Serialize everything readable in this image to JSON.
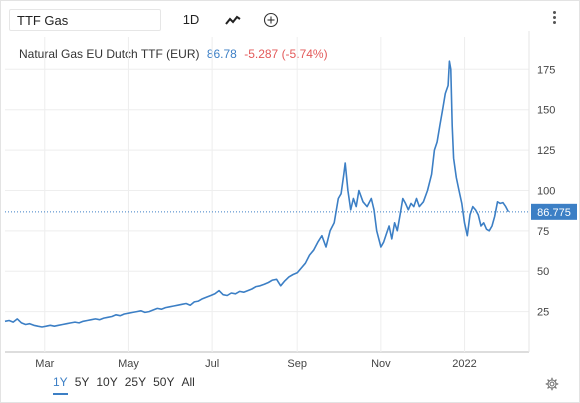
{
  "toolbar": {
    "symbol": "TTF Gas",
    "interval": "1D"
  },
  "legend": {
    "name": "Natural Gas EU Dutch TTF (EUR)",
    "price": "86.78",
    "change": "-5.287 (-5.74%)"
  },
  "last_label": "86.775",
  "ranges": [
    "1Y",
    "5Y",
    "10Y",
    "25Y",
    "50Y",
    "All"
  ],
  "active_range": "1Y",
  "colors": {
    "line": "#3c7fc5",
    "negative": "#e35a5a",
    "grid": "#eeeeee"
  },
  "chart_data": {
    "type": "line",
    "title": "Natural Gas EU Dutch TTF (EUR)",
    "xlabel": "",
    "ylabel": "",
    "ylim": [
      0,
      195
    ],
    "yticks": [
      25,
      50,
      75,
      100,
      125,
      150,
      175
    ],
    "xticks": [
      {
        "label": "Mar",
        "date": "2021-03-01"
      },
      {
        "label": "May",
        "date": "2021-05-01"
      },
      {
        "label": "Jul",
        "date": "2021-07-01"
      },
      {
        "label": "Sep",
        "date": "2021-09-01"
      },
      {
        "label": "Nov",
        "date": "2021-11-01"
      },
      {
        "label": "2022",
        "date": "2022-01-01"
      }
    ],
    "xlim": [
      "2021-01-31",
      "2022-02-17"
    ],
    "last_value": 86.775,
    "series": [
      {
        "name": "Natural Gas EU Dutch TTF (EUR)",
        "points": [
          [
            "2021-01-31",
            19.0
          ],
          [
            "2021-02-03",
            19.5
          ],
          [
            "2021-02-06",
            18.5
          ],
          [
            "2021-02-09",
            20.5
          ],
          [
            "2021-02-12",
            18.0
          ],
          [
            "2021-02-15",
            17.0
          ],
          [
            "2021-02-18",
            17.5
          ],
          [
            "2021-02-21",
            16.5
          ],
          [
            "2021-02-24",
            16.0
          ],
          [
            "2021-02-27",
            15.5
          ],
          [
            "2021-03-02",
            16.0
          ],
          [
            "2021-03-05",
            16.5
          ],
          [
            "2021-03-08",
            16.0
          ],
          [
            "2021-03-11",
            16.5
          ],
          [
            "2021-03-14",
            17.0
          ],
          [
            "2021-03-17",
            17.5
          ],
          [
            "2021-03-20",
            18.0
          ],
          [
            "2021-03-23",
            18.5
          ],
          [
            "2021-03-26",
            18.0
          ],
          [
            "2021-03-29",
            19.0
          ],
          [
            "2021-04-01",
            19.5
          ],
          [
            "2021-04-04",
            20.0
          ],
          [
            "2021-04-07",
            20.5
          ],
          [
            "2021-04-10",
            20.0
          ],
          [
            "2021-04-13",
            21.0
          ],
          [
            "2021-04-16",
            21.5
          ],
          [
            "2021-04-19",
            22.0
          ],
          [
            "2021-04-22",
            23.0
          ],
          [
            "2021-04-25",
            22.5
          ],
          [
            "2021-04-28",
            23.5
          ],
          [
            "2021-05-01",
            24.0
          ],
          [
            "2021-05-04",
            24.5
          ],
          [
            "2021-05-07",
            25.0
          ],
          [
            "2021-05-10",
            25.5
          ],
          [
            "2021-05-13",
            24.5
          ],
          [
            "2021-05-16",
            25.0
          ],
          [
            "2021-05-19",
            26.0
          ],
          [
            "2021-05-22",
            27.0
          ],
          [
            "2021-05-25",
            26.5
          ],
          [
            "2021-05-28",
            27.5
          ],
          [
            "2021-05-31",
            28.0
          ],
          [
            "2021-06-03",
            28.5
          ],
          [
            "2021-06-06",
            29.0
          ],
          [
            "2021-06-09",
            29.5
          ],
          [
            "2021-06-12",
            30.0
          ],
          [
            "2021-06-15",
            29.0
          ],
          [
            "2021-06-18",
            31.0
          ],
          [
            "2021-06-21",
            31.5
          ],
          [
            "2021-06-24",
            33.0
          ],
          [
            "2021-06-27",
            34.0
          ],
          [
            "2021-06-30",
            35.0
          ],
          [
            "2021-07-03",
            36.0
          ],
          [
            "2021-07-06",
            38.0
          ],
          [
            "2021-07-09",
            35.5
          ],
          [
            "2021-07-12",
            35.0
          ],
          [
            "2021-07-15",
            36.5
          ],
          [
            "2021-07-18",
            36.0
          ],
          [
            "2021-07-21",
            37.5
          ],
          [
            "2021-07-24",
            37.0
          ],
          [
            "2021-07-27",
            38.0
          ],
          [
            "2021-07-30",
            39.0
          ],
          [
            "2021-08-02",
            40.5
          ],
          [
            "2021-08-05",
            41.0
          ],
          [
            "2021-08-08",
            42.0
          ],
          [
            "2021-08-11",
            43.0
          ],
          [
            "2021-08-14",
            44.5
          ],
          [
            "2021-08-17",
            45.0
          ],
          [
            "2021-08-20",
            41.0
          ],
          [
            "2021-08-23",
            44.0
          ],
          [
            "2021-08-26",
            46.5
          ],
          [
            "2021-08-29",
            48.0
          ],
          [
            "2021-09-01",
            49.0
          ],
          [
            "2021-09-04",
            52.0
          ],
          [
            "2021-09-07",
            55.0
          ],
          [
            "2021-09-10",
            60.0
          ],
          [
            "2021-09-13",
            63.0
          ],
          [
            "2021-09-16",
            68.0
          ],
          [
            "2021-09-19",
            72.0
          ],
          [
            "2021-09-22",
            65.0
          ],
          [
            "2021-09-25",
            75.0
          ],
          [
            "2021-09-28",
            80.0
          ],
          [
            "2021-10-01",
            95.0
          ],
          [
            "2021-10-03",
            98.0
          ],
          [
            "2021-10-05",
            110.0
          ],
          [
            "2021-10-06",
            117.0
          ],
          [
            "2021-10-08",
            100.0
          ],
          [
            "2021-10-10",
            88.0
          ],
          [
            "2021-10-12",
            95.0
          ],
          [
            "2021-10-14",
            90.0
          ],
          [
            "2021-10-16",
            100.0
          ],
          [
            "2021-10-19",
            93.0
          ],
          [
            "2021-10-22",
            90.0
          ],
          [
            "2021-10-25",
            95.0
          ],
          [
            "2021-10-27",
            88.0
          ],
          [
            "2021-10-29",
            75.0
          ],
          [
            "2021-11-01",
            65.0
          ],
          [
            "2021-11-03",
            68.0
          ],
          [
            "2021-11-05",
            73.0
          ],
          [
            "2021-11-07",
            78.0
          ],
          [
            "2021-11-09",
            70.0
          ],
          [
            "2021-11-11",
            80.0
          ],
          [
            "2021-11-13",
            75.0
          ],
          [
            "2021-11-15",
            85.0
          ],
          [
            "2021-11-17",
            95.0
          ],
          [
            "2021-11-19",
            92.0
          ],
          [
            "2021-11-21",
            88.0
          ],
          [
            "2021-11-23",
            92.0
          ],
          [
            "2021-11-25",
            90.0
          ],
          [
            "2021-11-27",
            95.0
          ],
          [
            "2021-11-29",
            90.0
          ],
          [
            "2021-12-02",
            93.0
          ],
          [
            "2021-12-05",
            100.0
          ],
          [
            "2021-12-08",
            110.0
          ],
          [
            "2021-12-10",
            125.0
          ],
          [
            "2021-12-12",
            130.0
          ],
          [
            "2021-12-14",
            140.0
          ],
          [
            "2021-12-16",
            150.0
          ],
          [
            "2021-12-18",
            160.0
          ],
          [
            "2021-12-20",
            165.0
          ],
          [
            "2021-12-21",
            180.0
          ],
          [
            "2021-12-22",
            175.0
          ],
          [
            "2021-12-23",
            140.0
          ],
          [
            "2021-12-24",
            120.0
          ],
          [
            "2021-12-26",
            108.0
          ],
          [
            "2021-12-28",
            100.0
          ],
          [
            "2021-12-30",
            92.0
          ],
          [
            "2022-01-01",
            80.0
          ],
          [
            "2022-01-03",
            72.0
          ],
          [
            "2022-01-05",
            85.0
          ],
          [
            "2022-01-07",
            90.0
          ],
          [
            "2022-01-09",
            88.0
          ],
          [
            "2022-01-11",
            85.0
          ],
          [
            "2022-01-13",
            78.0
          ],
          [
            "2022-01-15",
            80.0
          ],
          [
            "2022-01-17",
            76.0
          ],
          [
            "2022-01-19",
            75.0
          ],
          [
            "2022-01-21",
            78.0
          ],
          [
            "2022-01-23",
            84.0
          ],
          [
            "2022-01-25",
            93.0
          ],
          [
            "2022-01-27",
            92.0
          ],
          [
            "2022-01-29",
            92.5
          ],
          [
            "2022-01-31",
            90.0
          ],
          [
            "2022-02-02",
            86.8
          ]
        ]
      }
    ]
  }
}
